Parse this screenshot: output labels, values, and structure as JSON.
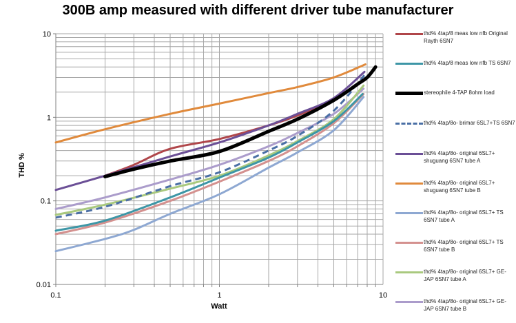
{
  "chart_data": {
    "type": "line",
    "title": "300B amp measured with different driver tube manufacturer",
    "xlabel": "Watt",
    "ylabel": "THD %",
    "xscale": "log",
    "yscale": "log",
    "xlim": [
      0.1,
      10
    ],
    "ylim": [
      0.01,
      10
    ],
    "xticks": [
      "0.1",
      "1",
      "10"
    ],
    "yticks": [
      "0.01",
      "0.1",
      "1",
      "10"
    ],
    "grid": true,
    "legend_position": "right",
    "series": [
      {
        "name": "thd% 4tap/8 meas low nfb Original Rayth 6SN7",
        "color": "#b0464a",
        "dash": false,
        "width": 3,
        "x": [
          0.2,
          0.3,
          0.5,
          1,
          2,
          3,
          4.3
        ],
        "y": [
          0.2,
          0.27,
          0.42,
          0.55,
          0.8,
          1.05,
          1.45
        ]
      },
      {
        "name": "thd% 4tap/8 meas low nfb TS 6SN7",
        "color": "#3d96a6",
        "dash": false,
        "width": 3,
        "x": [
          0.1,
          0.2,
          0.5,
          1,
          2,
          3,
          5,
          7.5
        ],
        "y": [
          0.044,
          0.058,
          0.11,
          0.19,
          0.33,
          0.5,
          0.9,
          1.9
        ]
      },
      {
        "name": "stereophile 4-TAP 8ohm load",
        "color": "#000000",
        "dash": false,
        "width": 5,
        "x": [
          0.2,
          0.3,
          0.5,
          1,
          2,
          3,
          5,
          7,
          8,
          9
        ],
        "y": [
          0.195,
          0.24,
          0.3,
          0.39,
          0.68,
          0.95,
          1.6,
          2.5,
          3.0,
          4.0
        ]
      },
      {
        "name": "thd% 4tap/8o- brimar 6SL7+TS 6SN7",
        "color": "#4a6fa5",
        "dash": true,
        "width": 3,
        "x": [
          0.1,
          0.2,
          0.5,
          1,
          2,
          3,
          5,
          7.7
        ],
        "y": [
          0.063,
          0.085,
          0.15,
          0.22,
          0.4,
          0.6,
          1.2,
          3.2
        ]
      },
      {
        "name": "thd% 4tap/8o- original 6SL7+ shuguang 6SN7 tube A",
        "color": "#6b4f96",
        "dash": false,
        "width": 3,
        "x": [
          0.1,
          0.2,
          0.5,
          1,
          2,
          3,
          5,
          7.7
        ],
        "y": [
          0.135,
          0.2,
          0.34,
          0.5,
          0.8,
          1.1,
          1.7,
          3.5
        ]
      },
      {
        "name": "thd% 4tap/8o- original 6SL7+ shuguang 6SN7 tube B",
        "color": "#e08a3c",
        "dash": false,
        "width": 3,
        "x": [
          0.1,
          0.2,
          0.5,
          1,
          2,
          3,
          5,
          7.8
        ],
        "y": [
          0.5,
          0.72,
          1.1,
          1.46,
          1.95,
          2.3,
          3.0,
          4.3
        ]
      },
      {
        "name": "thd% 4tap/8o- original 6SL7+ TS 6SN7 tube A",
        "color": "#8ea8d2",
        "dash": false,
        "width": 3,
        "x": [
          0.1,
          0.2,
          0.3,
          0.5,
          1,
          2,
          3,
          5,
          7.6
        ],
        "y": [
          0.025,
          0.035,
          0.045,
          0.07,
          0.12,
          0.25,
          0.38,
          0.7,
          1.75
        ]
      },
      {
        "name": "thd% 4tap/8o- original 6SL7+ TS 6SN7 tube B",
        "color": "#d4918f",
        "dash": false,
        "width": 3,
        "x": [
          0.1,
          0.2,
          0.5,
          1,
          2,
          3,
          5,
          7.6
        ],
        "y": [
          0.04,
          0.055,
          0.1,
          0.17,
          0.3,
          0.45,
          0.85,
          1.9
        ]
      },
      {
        "name": "thd% 4tap/8o- original 6SL7+ GE-JAP 6SN7 tube A",
        "color": "#a9c97e",
        "dash": false,
        "width": 3,
        "x": [
          0.1,
          0.2,
          0.5,
          1,
          2,
          3,
          5,
          7.6
        ],
        "y": [
          0.068,
          0.09,
          0.14,
          0.2,
          0.35,
          0.52,
          0.95,
          2.4
        ]
      },
      {
        "name": "thd% 4tap/8o- original 6SL7+ GE-JAP 6SN7 tube B",
        "color": "#ab9ccb",
        "dash": false,
        "width": 3,
        "x": [
          0.1,
          0.2,
          0.5,
          1,
          2,
          3,
          5,
          7.6
        ],
        "y": [
          0.08,
          0.11,
          0.18,
          0.27,
          0.45,
          0.65,
          1.1,
          2.2
        ]
      }
    ]
  }
}
